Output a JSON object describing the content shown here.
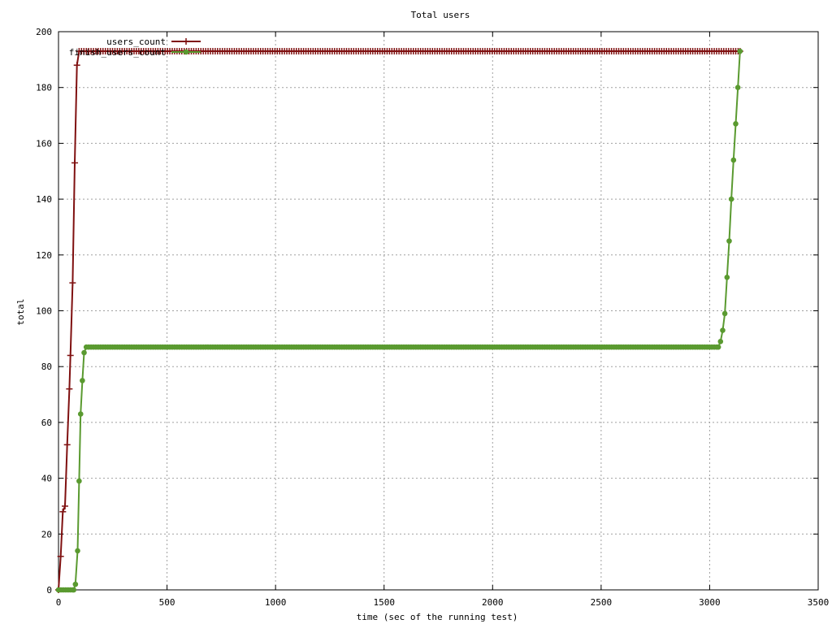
{
  "chart_data": {
    "type": "line",
    "title": "Total users",
    "xlabel": "time (sec of the running test)",
    "ylabel": "total",
    "xlim": [
      0,
      3500
    ],
    "ylim": [
      0,
      200
    ],
    "xticks": [
      0,
      500,
      1000,
      1500,
      2000,
      2500,
      3000,
      3500
    ],
    "yticks": [
      0,
      20,
      40,
      60,
      80,
      100,
      120,
      140,
      160,
      180,
      200
    ],
    "grid": true,
    "legend_position": "top-left",
    "series": [
      {
        "name": "users_count",
        "color": "#7f1010",
        "marker": "plus",
        "points": [
          [
            0,
            0
          ],
          [
            10,
            12
          ],
          [
            20,
            28
          ],
          [
            30,
            30
          ],
          [
            40,
            52
          ],
          [
            50,
            72
          ],
          [
            55,
            84
          ],
          [
            65,
            110
          ],
          [
            75,
            153
          ],
          [
            85,
            188
          ],
          [
            95,
            193
          ],
          [
            3140,
            193
          ]
        ]
      },
      {
        "name": "finish_users_count",
        "color": "#5a9a30",
        "marker": "dot",
        "points": [
          [
            0,
            0
          ],
          [
            70,
            0
          ],
          [
            78,
            2
          ],
          [
            88,
            14
          ],
          [
            95,
            39
          ],
          [
            102,
            63
          ],
          [
            110,
            75
          ],
          [
            118,
            85
          ],
          [
            128,
            87
          ],
          [
            3040,
            87
          ],
          [
            3050,
            89
          ],
          [
            3060,
            93
          ],
          [
            3070,
            99
          ],
          [
            3080,
            112
          ],
          [
            3090,
            125
          ],
          [
            3100,
            140
          ],
          [
            3110,
            154
          ],
          [
            3120,
            167
          ],
          [
            3130,
            180
          ],
          [
            3140,
            193
          ]
        ]
      }
    ]
  }
}
